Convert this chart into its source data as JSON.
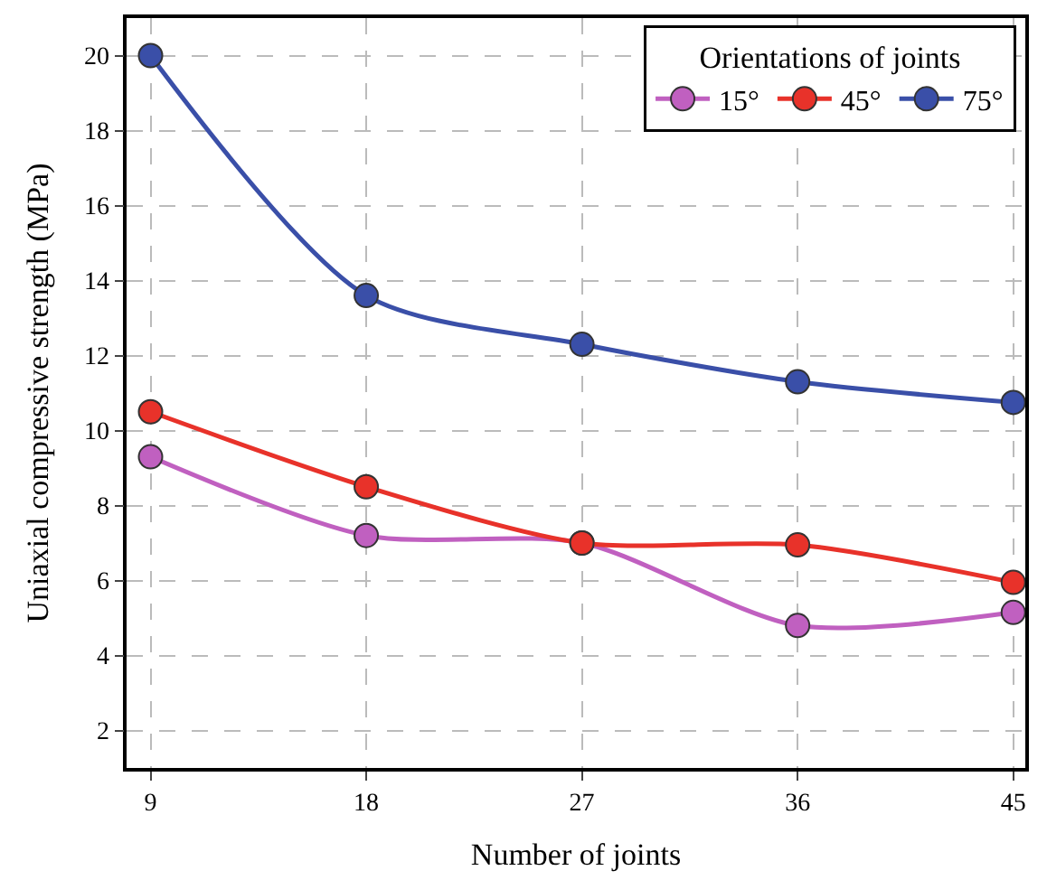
{
  "chart_data": {
    "type": "line",
    "xlabel": "Number of joints",
    "ylabel": "Uniaxial compressive strength (MPa)",
    "legend_title": "Orientations of joints",
    "x": [
      9,
      18,
      27,
      36,
      45
    ],
    "series": [
      {
        "name": "15°",
        "color": "#c060c0",
        "values": [
          9.3,
          7.2,
          7.0,
          4.8,
          5.15
        ]
      },
      {
        "name": "45°",
        "color": "#e8322a",
        "values": [
          10.5,
          8.5,
          7.0,
          6.95,
          5.95
        ]
      },
      {
        "name": "75°",
        "color": "#3a4fa8",
        "values": [
          20.0,
          13.6,
          12.3,
          11.3,
          10.75
        ]
      }
    ],
    "xlim": [
      8,
      45.5
    ],
    "xticks": [
      9,
      18,
      27,
      36,
      45
    ],
    "ylim": [
      1,
      21
    ],
    "yticks": [
      2,
      4,
      6,
      8,
      10,
      12,
      14,
      16,
      18,
      20
    ],
    "grid": true,
    "legend": "top right",
    "marker": "circle",
    "line_style": "solid"
  }
}
